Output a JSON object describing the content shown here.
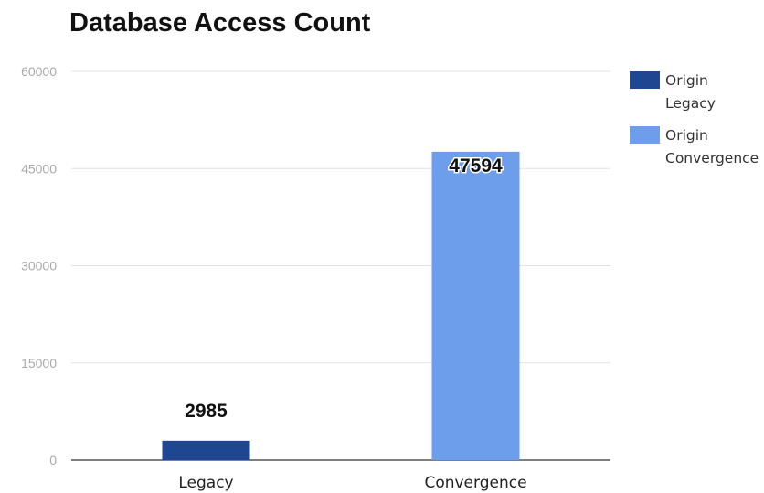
{
  "chart_data": {
    "type": "bar",
    "title": "Database Access Count",
    "categories": [
      "Legacy",
      "Convergence"
    ],
    "series": [
      {
        "name": "Origin Legacy",
        "name_lines": [
          "Origin",
          "Legacy"
        ],
        "color": "#1f4690",
        "values": [
          2985,
          null
        ]
      },
      {
        "name": "Origin Convergence",
        "name_lines": [
          "Origin",
          "Convergence"
        ],
        "color": "#6d9eeb",
        "values": [
          null,
          47594
        ]
      }
    ],
    "data_labels": [
      "2985",
      "47594"
    ],
    "ylim": [
      0,
      60000
    ],
    "yticks": [
      0,
      15000,
      30000,
      45000,
      60000
    ],
    "ytick_labels": [
      "0",
      "15000",
      "30000",
      "45000",
      "60000"
    ],
    "xlabel": "",
    "ylabel": "",
    "grid": true,
    "legend": "right"
  }
}
